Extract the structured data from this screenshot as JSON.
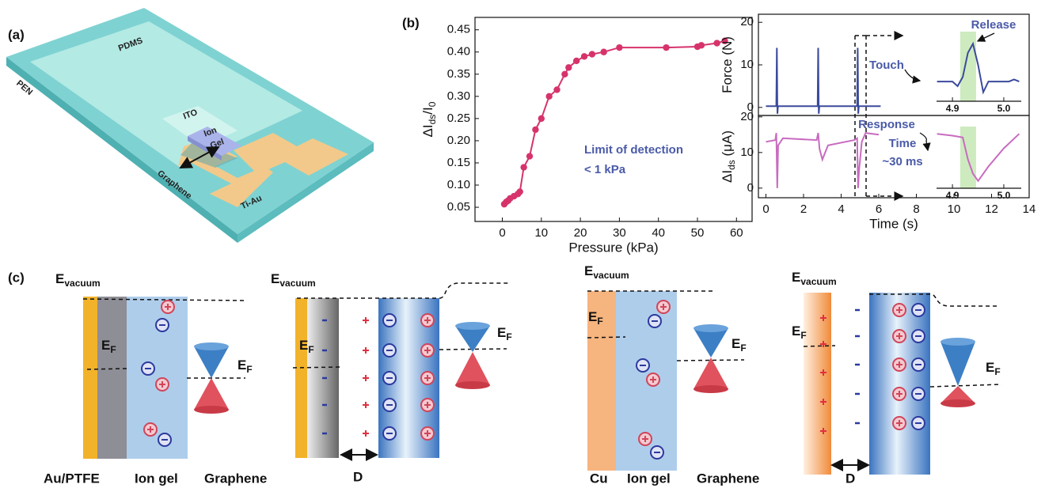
{
  "panel_labels": [
    "(a)",
    "(b)",
    "(c)"
  ],
  "device": {
    "pdms": "PDMS",
    "pen": "PEN",
    "ito": "ITO",
    "ion_gel": [
      "Ion",
      "Gel"
    ],
    "graphene": "Graphene",
    "ti_au": "Ti-Au"
  },
  "chart_data": [
    {
      "type": "line",
      "markers": true,
      "color": "#d6336c",
      "x": [
        0.5,
        1,
        1.5,
        2,
        3,
        4,
        4.5,
        5.5,
        7,
        8.5,
        10,
        12,
        14,
        16,
        17,
        19,
        21,
        23,
        26,
        30,
        42,
        50,
        51,
        55,
        57
      ],
      "values": [
        0.057,
        0.062,
        0.065,
        0.07,
        0.075,
        0.08,
        0.085,
        0.14,
        0.165,
        0.225,
        0.25,
        0.3,
        0.315,
        0.35,
        0.365,
        0.38,
        0.39,
        0.395,
        0.4,
        0.41,
        0.41,
        0.412,
        0.415,
        0.42,
        0.425
      ],
      "xlim": [
        -7,
        64
      ],
      "ylim": [
        0.018,
        0.478
      ],
      "xticks": [
        0,
        10,
        20,
        30,
        40,
        50,
        60
      ],
      "yticks": [
        0.05,
        {
          "value": 0.1,
          "label": "0.10"
        },
        0.15,
        {
          "value": 0.2,
          "label": "0.20"
        },
        0.25,
        {
          "value": 0.3,
          "label": "0.30"
        },
        0.35,
        {
          "value": 0.4,
          "label": "0.40"
        },
        0.45
      ],
      "x_label": "Pressure (kPa)",
      "y_label": [
        "ΔI",
        "ds",
        "/I",
        "0"
      ],
      "annotations": [
        "Limit of detection",
        "< 1 kPa"
      ]
    },
    {
      "type": "line",
      "color": "#3b4a9c",
      "x": [
        0,
        0.55,
        0.58,
        0.61,
        0.64,
        0.7,
        2.75,
        2.78,
        2.81,
        2.84,
        2.9,
        4.85,
        4.88,
        4.91,
        4.94,
        5,
        6.1
      ],
      "values": [
        0.3,
        0.3,
        14,
        -1.5,
        0.3,
        0.3,
        0.3,
        14,
        -1.5,
        0.3,
        0.3,
        0.3,
        14,
        -1.5,
        0.3,
        0.3,
        0.3
      ],
      "xlim": [
        -0.4,
        14
      ],
      "ylim": [
        -1.9,
        21.9
      ],
      "yticks": [
        0,
        10,
        20
      ],
      "y_label": [
        "Force (N)"
      ]
    },
    {
      "type": "line",
      "color": "#c86cc0",
      "x": [
        0,
        0.5,
        0.55,
        0.6,
        0.65,
        0.9,
        2.7,
        2.78,
        2.85,
        3,
        3.3,
        4.7,
        4.85,
        4.9,
        4.95,
        5.1,
        5.3,
        6
      ],
      "values": [
        13,
        13.5,
        15.5,
        0,
        12,
        14,
        13.5,
        15.5,
        11,
        8,
        12,
        13.5,
        14,
        0,
        5,
        13,
        15.5,
        15
      ],
      "xlim": [
        -0.4,
        14
      ],
      "ylim": [
        -2.7,
        20.4
      ],
      "xticks": [
        0,
        2,
        4,
        6,
        8,
        10,
        12,
        14
      ],
      "yticks": [
        0,
        10,
        20
      ],
      "x_label": "Time (s)",
      "y_label": [
        "ΔI",
        "ds",
        " (μA)"
      ]
    },
    {
      "type": "line",
      "color": "#3b4a9c",
      "x": [
        4.87,
        4.9,
        4.91,
        4.92,
        4.93,
        4.94,
        4.95,
        4.96,
        4.97,
        4.99,
        5.01,
        5.02,
        5.03
      ],
      "values": [
        0.5,
        0.5,
        -1,
        2,
        10,
        13,
        6,
        -3,
        0.5,
        0.5,
        0.5,
        1.2,
        0.5
      ],
      "xlim": [
        4.869,
        5.034
      ],
      "ylim": [
        -6,
        17
      ],
      "xticks": [
        4.9,
        {
          "value": 5,
          "label": "5.0"
        }
      ],
      "highlight": [
        4.915,
        4.946
      ],
      "annotations": [
        "Touch",
        "Release"
      ]
    },
    {
      "type": "line",
      "color": "#c86cc0",
      "x": [
        4.87,
        4.9,
        4.92,
        4.93,
        4.94,
        4.95,
        4.97,
        5.0,
        5.03
      ],
      "values": [
        15,
        14.5,
        14,
        8,
        4,
        2,
        6,
        11,
        15
      ],
      "xlim": [
        4.869,
        5.034
      ],
      "ylim": [
        0,
        17
      ],
      "xticks": [
        4.9,
        {
          "value": 5,
          "label": "5.0"
        }
      ],
      "highlight": [
        4.915,
        4.946
      ],
      "annotations": [
        "Response",
        "Time",
        "~30 ms"
      ]
    }
  ],
  "energy_diagrams": [
    {
      "vacuum": [
        "E",
        "vacuum"
      ],
      "ef_left": [
        "E",
        "F"
      ],
      "ef_right": [
        "E",
        "F"
      ],
      "labels": [
        "Au/PTFE",
        "Ion gel",
        "Graphene"
      ]
    },
    {
      "vacuum": [
        "E",
        "vacuum"
      ],
      "ef_left": [
        "E",
        "F"
      ],
      "ef_right": [
        "E",
        "F"
      ],
      "labels": [
        "D"
      ]
    },
    {
      "vacuum": [
        "E",
        "vacuum"
      ],
      "ef_left": [
        "E",
        "F"
      ],
      "ef_right": [
        "E",
        "F"
      ],
      "labels": [
        "Cu",
        "Ion gel",
        "Graphene"
      ]
    },
    {
      "vacuum": [
        "E",
        "vacuum"
      ],
      "ef_left": [
        "E",
        "F"
      ],
      "ef_right": [
        "E",
        "F"
      ],
      "labels": [
        "D"
      ]
    }
  ]
}
